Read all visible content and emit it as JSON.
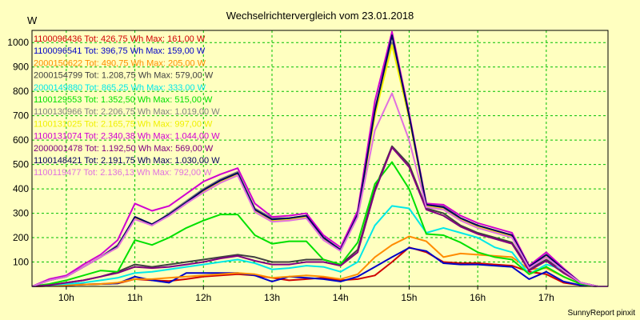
{
  "chart_data": {
    "type": "line",
    "title": "Wechselrichtervergleich vom 23.01.2018",
    "ylabel": "W",
    "xlabel": "",
    "ylim": [
      0,
      1050
    ],
    "yticks": [
      100,
      200,
      300,
      400,
      500,
      600,
      700,
      800,
      900,
      1000
    ],
    "xlim": [
      9.5,
      17.9
    ],
    "xticks": [
      10,
      11,
      12,
      13,
      14,
      15,
      16,
      17
    ],
    "xtick_labels": [
      "10h",
      "11h",
      "12h",
      "13h",
      "14h",
      "15h",
      "16h",
      "17h"
    ],
    "grid": true,
    "legend_position": "top-left",
    "x": [
      9.5,
      9.75,
      10.0,
      10.25,
      10.5,
      10.75,
      11.0,
      11.25,
      11.5,
      11.75,
      12.0,
      12.25,
      12.5,
      12.75,
      13.0,
      13.25,
      13.5,
      13.75,
      14.0,
      14.25,
      14.5,
      14.75,
      15.0,
      15.25,
      15.5,
      15.75,
      16.0,
      16.25,
      16.5,
      16.75,
      17.0,
      17.25,
      17.5,
      17.75,
      17.9
    ],
    "series": [
      {
        "name": "1100096436 Tot: 426,75 Wh Max: 161,00 W",
        "color": "#d00000",
        "values": [
          0,
          2,
          5,
          8,
          10,
          12,
          30,
          25,
          22,
          30,
          40,
          45,
          50,
          45,
          35,
          25,
          30,
          35,
          25,
          30,
          45,
          100,
          160,
          140,
          100,
          95,
          95,
          90,
          85,
          60,
          50,
          15,
          5,
          0,
          0
        ]
      },
      {
        "name": "1100096541 Tot: 396,75 Wh Max: 159,00 W",
        "color": "#0000c8",
        "values": [
          0,
          2,
          5,
          8,
          10,
          12,
          40,
          25,
          15,
          55,
          55,
          55,
          55,
          45,
          20,
          40,
          35,
          30,
          20,
          40,
          80,
          120,
          158,
          145,
          95,
          90,
          90,
          85,
          80,
          30,
          60,
          20,
          5,
          0,
          0
        ]
      },
      {
        "name": "2000150622 Tot: 490,75 Wh Max: 205,00 W",
        "color": "#ff8c00",
        "values": [
          0,
          2,
          5,
          8,
          10,
          15,
          30,
          30,
          35,
          40,
          45,
          50,
          55,
          50,
          35,
          40,
          45,
          40,
          30,
          50,
          120,
          170,
          205,
          185,
          120,
          135,
          130,
          125,
          120,
          70,
          75,
          40,
          10,
          0,
          0
        ]
      },
      {
        "name": "2000154799 Tot: 1.208,75 Wh Max: 579,00 W",
        "color": "#404040",
        "values": [
          0,
          5,
          15,
          25,
          40,
          60,
          90,
          80,
          90,
          100,
          110,
          120,
          130,
          120,
          100,
          100,
          110,
          110,
          90,
          150,
          400,
          575,
          500,
          320,
          300,
          250,
          220,
          200,
          180,
          70,
          110,
          60,
          15,
          0,
          0
        ]
      },
      {
        "name": "2000149880 Tot: 865,25 Wh Max: 333,00 W",
        "color": "#00e8e8",
        "values": [
          0,
          5,
          10,
          15,
          25,
          35,
          55,
          60,
          70,
          80,
          90,
          100,
          110,
          95,
          70,
          75,
          85,
          80,
          60,
          100,
          250,
          330,
          320,
          220,
          240,
          220,
          200,
          160,
          140,
          50,
          90,
          70,
          15,
          0,
          0
        ]
      },
      {
        "name": "1100129553 Tot: 1.352,50 Wh Max: 515,00 W",
        "color": "#00e000",
        "values": [
          0,
          10,
          25,
          45,
          65,
          60,
          190,
          170,
          200,
          240,
          270,
          295,
          295,
          210,
          175,
          185,
          185,
          110,
          90,
          180,
          420,
          510,
          400,
          215,
          210,
          180,
          140,
          120,
          110,
          50,
          80,
          40,
          10,
          0,
          0
        ]
      },
      {
        "name": "1100130966 Tot: 2.206,75 Wh Max: 1.019,00 W",
        "color": "#808080",
        "values": [
          0,
          25,
          40,
          80,
          120,
          170,
          280,
          250,
          300,
          350,
          400,
          440,
          470,
          320,
          280,
          280,
          290,
          200,
          150,
          300,
          730,
          1000,
          700,
          340,
          330,
          280,
          250,
          230,
          210,
          80,
          130,
          70,
          15,
          0,
          0
        ]
      },
      {
        "name": "1100131025 Tot: 2.165,75 Wh Max: 997,00 W",
        "color": "#f0f000",
        "values": [
          0,
          25,
          40,
          80,
          120,
          160,
          280,
          255,
          290,
          340,
          390,
          430,
          460,
          310,
          270,
          275,
          285,
          195,
          150,
          290,
          700,
          990,
          690,
          330,
          320,
          275,
          245,
          225,
          205,
          75,
          125,
          65,
          15,
          0,
          0
        ]
      },
      {
        "name": "1100131074 Tot: 2.340,38 Wh Max: 1.044,00 W",
        "color": "#d000d0",
        "values": [
          0,
          30,
          45,
          90,
          130,
          190,
          340,
          310,
          330,
          380,
          430,
          460,
          485,
          340,
          285,
          290,
          300,
          210,
          160,
          310,
          760,
          1044,
          710,
          340,
          335,
          290,
          260,
          240,
          220,
          85,
          140,
          75,
          15,
          0,
          0
        ]
      },
      {
        "name": "2000001478 Tot: 1.192,50 Wh Max: 569,00 W",
        "color": "#800080",
        "values": [
          0,
          5,
          15,
          25,
          40,
          55,
          80,
          75,
          80,
          90,
          100,
          115,
          125,
          105,
          90,
          90,
          100,
          100,
          85,
          140,
          390,
          570,
          490,
          315,
          290,
          245,
          215,
          195,
          175,
          65,
          105,
          55,
          15,
          0,
          0
        ]
      },
      {
        "name": "1100148421 Tot: 2.191,75 Wh Max: 1.030,00 W",
        "color": "#000060",
        "values": [
          0,
          25,
          40,
          80,
          120,
          165,
          285,
          255,
          295,
          345,
          395,
          435,
          465,
          315,
          275,
          280,
          290,
          200,
          150,
          295,
          720,
          1030,
          700,
          335,
          325,
          280,
          250,
          230,
          210,
          80,
          130,
          70,
          15,
          0,
          0
        ]
      },
      {
        "name": "1100119477 Tot: 2.136,13 Wh Max: 792,00 W",
        "color": "#e070e0",
        "values": [
          0,
          25,
          40,
          80,
          120,
          160,
          275,
          250,
          290,
          340,
          385,
          425,
          455,
          305,
          265,
          270,
          280,
          190,
          145,
          285,
          640,
          792,
          600,
          325,
          315,
          270,
          240,
          220,
          200,
          75,
          120,
          65,
          15,
          0,
          0
        ]
      }
    ]
  },
  "footer": {
    "credit": "SunnyReport pinxit"
  }
}
